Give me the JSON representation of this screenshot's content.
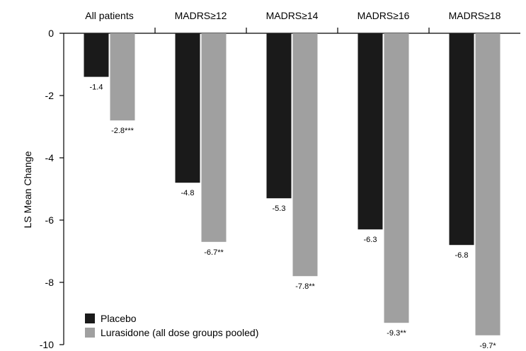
{
  "chart_data": {
    "type": "bar",
    "orientation": "vertical",
    "ylabel": "LS Mean Change",
    "ylim": [
      -10,
      0
    ],
    "yticks": [
      0,
      -2,
      -4,
      -6,
      -8,
      -10
    ],
    "category_axis_position": "top",
    "grid": false,
    "legend_position": "bottom-left",
    "categories": [
      "All patients",
      "MADRS≥12",
      "MADRS≥14",
      "MADRS≥16",
      "MADRS≥18"
    ],
    "series": [
      {
        "name": "Placebo",
        "color": "#1a1a1a",
        "values": [
          -1.4,
          -4.8,
          -5.3,
          -6.3,
          -6.8
        ],
        "labels": [
          "-1.4",
          "-4.8",
          "-5.3",
          "-6.3",
          "-6.8"
        ]
      },
      {
        "name": "Lurasidone (all dose groups pooled)",
        "color": "#a0a0a0",
        "values": [
          -2.8,
          -6.7,
          -7.8,
          -9.3,
          -9.7
        ],
        "labels": [
          "-2.8***",
          "-6.7**",
          "-7.8**",
          "-9.3**",
          "-9.7*"
        ]
      }
    ]
  }
}
